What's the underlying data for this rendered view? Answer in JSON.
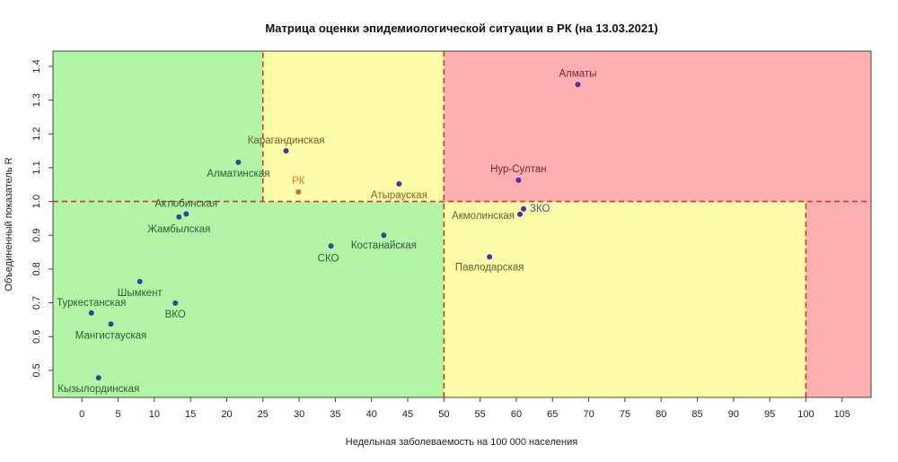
{
  "chart_data": {
    "type": "scatter",
    "title": "Матрица оценки эпидемиологической ситуации в РК (на 13.03.2021)",
    "xlabel": "Недельная заболеваемость на 100 000 населения",
    "ylabel": "Объединенный показатель R",
    "xlim": [
      -4,
      109
    ],
    "ylim": [
      0.42,
      1.445
    ],
    "x_ticks": [
      0,
      5,
      10,
      15,
      20,
      25,
      30,
      35,
      40,
      45,
      50,
      55,
      60,
      65,
      70,
      75,
      80,
      85,
      90,
      95,
      100,
      105
    ],
    "y_ticks": [
      0.5,
      0.6,
      0.7,
      0.8,
      0.9,
      1.0,
      1.1,
      1.2,
      1.3,
      1.4
    ],
    "y_tick_labels": [
      "0.5",
      "0.6",
      "0.7",
      "0.8",
      "0.9",
      "1.0",
      "1.1",
      "1.2",
      "1.3",
      "1.4"
    ],
    "zones": [
      {
        "x": [
          -4,
          50
        ],
        "y": [
          0.42,
          1.0
        ],
        "color": "#b3f5a7"
      },
      {
        "x": [
          -4,
          25
        ],
        "y": [
          1.0,
          1.445
        ],
        "color": "#b3f5a7"
      },
      {
        "x": [
          25,
          50
        ],
        "y": [
          1.0,
          1.445
        ],
        "color": "#fdfca8"
      },
      {
        "x": [
          50,
          100
        ],
        "y": [
          0.42,
          1.0
        ],
        "color": "#fdfca8"
      },
      {
        "x": [
          100,
          109
        ],
        "y": [
          0.42,
          1.0
        ],
        "color": "#fdb0b0"
      },
      {
        "x": [
          50,
          109
        ],
        "y": [
          1.0,
          1.445
        ],
        "color": "#fdb0b0"
      }
    ],
    "threshold_lines": [
      {
        "x": [
          25,
          25
        ],
        "y": [
          1.0,
          1.445
        ]
      },
      {
        "x": [
          50,
          50
        ],
        "y": [
          0.42,
          1.445
        ]
      },
      {
        "x": [
          100,
          100
        ],
        "y": [
          0.42,
          1.0
        ]
      },
      {
        "x": [
          -4,
          109
        ],
        "y": [
          1.0,
          1.0
        ]
      }
    ],
    "threshold_color": "#d43a2a",
    "points": [
      {
        "name": "Алматы",
        "x": 68.5,
        "y": 1.346,
        "color": "#5b2aa8",
        "label_color": "#8b1c3a",
        "dx": 0,
        "dy": -9,
        "anchor": "middle"
      },
      {
        "name": "Нур-Султан",
        "x": 60.3,
        "y": 1.063,
        "color": "#5b2aa8",
        "label_color": "#7a1f2e",
        "dx": 0,
        "dy": -9,
        "anchor": "middle"
      },
      {
        "name": "ЗКО",
        "x": 61.0,
        "y": 0.978,
        "color": "#5b2aa8",
        "label_color": "#4d4aa0",
        "dx": 7,
        "dy": 3,
        "anchor": "start"
      },
      {
        "name": "Акмолинская",
        "x": 60.5,
        "y": 0.962,
        "color": "#5b2aa8",
        "label_color": "#6a5e2e",
        "dx": -6,
        "dy": 5,
        "anchor": "end"
      },
      {
        "name": "Павлодарская",
        "x": 56.3,
        "y": 0.836,
        "color": "#5b2aa8",
        "label_color": "#6a5e2e",
        "dx": 0,
        "dy": 15,
        "anchor": "middle"
      },
      {
        "name": "Атырауская",
        "x": 43.8,
        "y": 1.052,
        "color": "#5b2aa8",
        "label_color": "#7a6b2a",
        "dx": 0,
        "dy": 16,
        "anchor": "middle"
      },
      {
        "name": "Карагандинская",
        "x": 28.2,
        "y": 1.15,
        "color": "#5b2aa8",
        "label_color": "#6a5e2e",
        "dx": 0,
        "dy": -8,
        "anchor": "middle"
      },
      {
        "name": "РК",
        "x": 29.9,
        "y": 1.028,
        "color": "#d96a2a",
        "label_color": "#e07a30",
        "dx": 0,
        "dy": -9,
        "anchor": "middle"
      },
      {
        "name": "Алматинская",
        "x": 21.6,
        "y": 1.116,
        "color": "#1f4fa0",
        "label_color": "#2e5e2e",
        "dx": 0,
        "dy": 16,
        "anchor": "middle"
      },
      {
        "name": "Актюбинская",
        "x": 14.4,
        "y": 0.963,
        "color": "#1f4fa0",
        "label_color": "#2e5e2e",
        "dx": 0,
        "dy": -8,
        "anchor": "middle"
      },
      {
        "name": "Жамбылская",
        "x": 13.4,
        "y": 0.954,
        "color": "#1f4fa0",
        "label_color": "#2e5e2e",
        "dx": 0,
        "dy": 17,
        "anchor": "middle"
      },
      {
        "name": "СКО",
        "x": 34.4,
        "y": 0.868,
        "color": "#1f4fa0",
        "label_color": "#2e5e2e",
        "dx": -3,
        "dy": 17,
        "anchor": "middle"
      },
      {
        "name": "Костанайская",
        "x": 41.7,
        "y": 0.9,
        "color": "#1f4fa0",
        "label_color": "#2e5e2e",
        "dx": 0,
        "dy": 15,
        "anchor": "middle"
      },
      {
        "name": "Шымкент",
        "x": 8.0,
        "y": 0.763,
        "color": "#1f4fa0",
        "label_color": "#2e5e2e",
        "dx": 0,
        "dy": 16,
        "anchor": "middle"
      },
      {
        "name": "ВКО",
        "x": 12.9,
        "y": 0.699,
        "color": "#1f4fa0",
        "label_color": "#2e5e2e",
        "dx": 0,
        "dy": 16,
        "anchor": "middle"
      },
      {
        "name": "Туркестанская",
        "x": 1.3,
        "y": 0.67,
        "color": "#1f4fa0",
        "label_color": "#2e5e2e",
        "dx": 0,
        "dy": -8,
        "anchor": "middle"
      },
      {
        "name": "Мангистауская",
        "x": 4.0,
        "y": 0.637,
        "color": "#1f4fa0",
        "label_color": "#2e5e2e",
        "dx": 0,
        "dy": 16,
        "anchor": "middle"
      },
      {
        "name": "Кызылординская",
        "x": 2.3,
        "y": 0.478,
        "color": "#1f4fa0",
        "label_color": "#2e5e2e",
        "dx": 0,
        "dy": 16,
        "anchor": "middle"
      }
    ]
  }
}
